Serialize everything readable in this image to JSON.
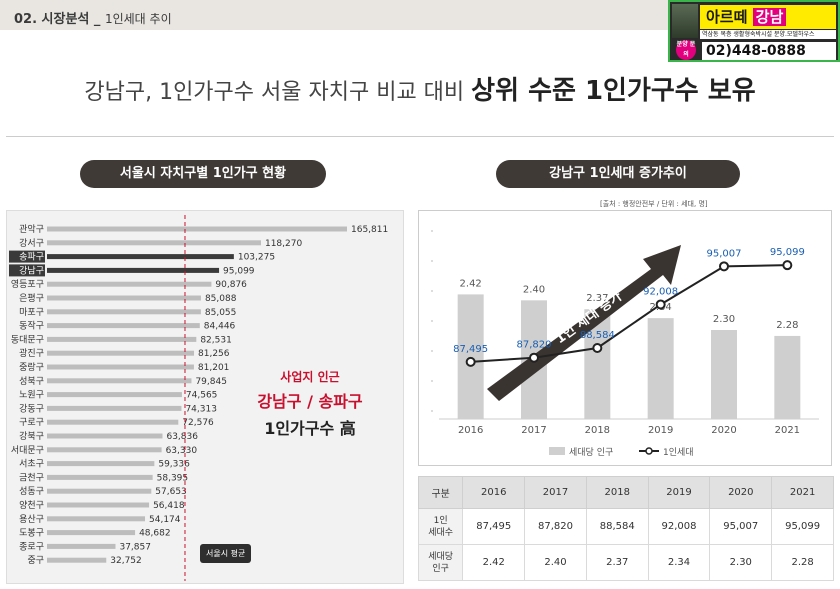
{
  "header": {
    "section": "02. 시장분석 _",
    "subsection": "1인세대 추이"
  },
  "ad": {
    "brand": "아르떼",
    "brand_accent": "강남",
    "badge": "분양 문의",
    "sub": "역삼동 복층 생활형숙박시설 분양.모델하우스",
    "phone": "02)448-0888"
  },
  "headline": {
    "prefix": "강남구, 1인가구수 서울 자치구 비교 대비",
    "emphasis": "상위 수준 1인가구수 보유"
  },
  "left_title": "서울시 자치구별 1인가구 현황",
  "right_title": "강남구 1인세대 증가추이",
  "source": "[출처 : 행정안전부 / 단위 : 세대, 명]",
  "callout": {
    "line1": "사업지 인근",
    "line2": "강남구 / 송파구",
    "line3": "1인가구수 高"
  },
  "avg_label": "서울시 평균",
  "legend": {
    "bar": "세대당 인구",
    "line": "1인세대"
  },
  "arrow_label": "1인 세대 증가",
  "table": {
    "headers": [
      "구분",
      "2016",
      "2017",
      "2018",
      "2019",
      "2020",
      "2021"
    ],
    "rows": [
      {
        "label": "1인\n세대수",
        "values": [
          "87,495",
          "87,820",
          "88,584",
          "92,008",
          "95,007",
          "95,099"
        ]
      },
      {
        "label": "세대당\n인구",
        "values": [
          "2.42",
          "2.40",
          "2.37",
          "2.34",
          "2.30",
          "2.28"
        ]
      }
    ]
  },
  "colors": {
    "dark": "#3f3a36",
    "highlight": "#3a3a3a",
    "bar": "#bdbdbd",
    "accent": "#c8102e",
    "line_point": "#1a5fb4"
  },
  "chart_data": [
    {
      "type": "bar",
      "orientation": "horizontal",
      "categories": [
        "관악구",
        "강서구",
        "송파구",
        "강남구",
        "영등포구",
        "은평구",
        "마포구",
        "동작구",
        "동대문구",
        "광진구",
        "중랑구",
        "성북구",
        "노원구",
        "강동구",
        "구로구",
        "강북구",
        "서대문구",
        "서초구",
        "금천구",
        "성동구",
        "양천구",
        "용산구",
        "도봉구",
        "종로구",
        "중구"
      ],
      "values": [
        165811,
        118270,
        103275,
        95099,
        90876,
        85088,
        85055,
        84446,
        82531,
        81256,
        81201,
        79845,
        74565,
        74313,
        72576,
        63836,
        63330,
        59336,
        58395,
        57653,
        56418,
        54174,
        48682,
        37857,
        32752
      ],
      "labels": [
        "165,811",
        "118,270",
        "103,275",
        "95,099",
        "90,876",
        "85,088",
        "85,055",
        "84,446",
        "82,531",
        "81,256",
        "81,201",
        "79,845",
        "74,565",
        "74,313",
        "72,576",
        "63,836",
        "63,330",
        "59,336",
        "58,395",
        "57,653",
        "56,418",
        "54,174",
        "48,682",
        "37,857",
        "32,752"
      ],
      "highlight": [
        "송파구",
        "강남구"
      ],
      "reference": {
        "label": "서울시 평균"
      }
    },
    {
      "type": "bar+line",
      "x": [
        "2016",
        "2017",
        "2018",
        "2019",
        "2020",
        "2021"
      ],
      "series": [
        {
          "name": "세대당 인구",
          "type": "bar",
          "values": [
            2.42,
            2.4,
            2.37,
            2.34,
            2.3,
            2.28
          ]
        },
        {
          "name": "1인세대",
          "type": "line",
          "values": [
            87495,
            87820,
            88584,
            92008,
            95007,
            95099
          ],
          "labels": [
            "87,495",
            "87,820",
            "88,584",
            "92,008",
            "95,007",
            "95,099"
          ]
        }
      ]
    }
  ]
}
